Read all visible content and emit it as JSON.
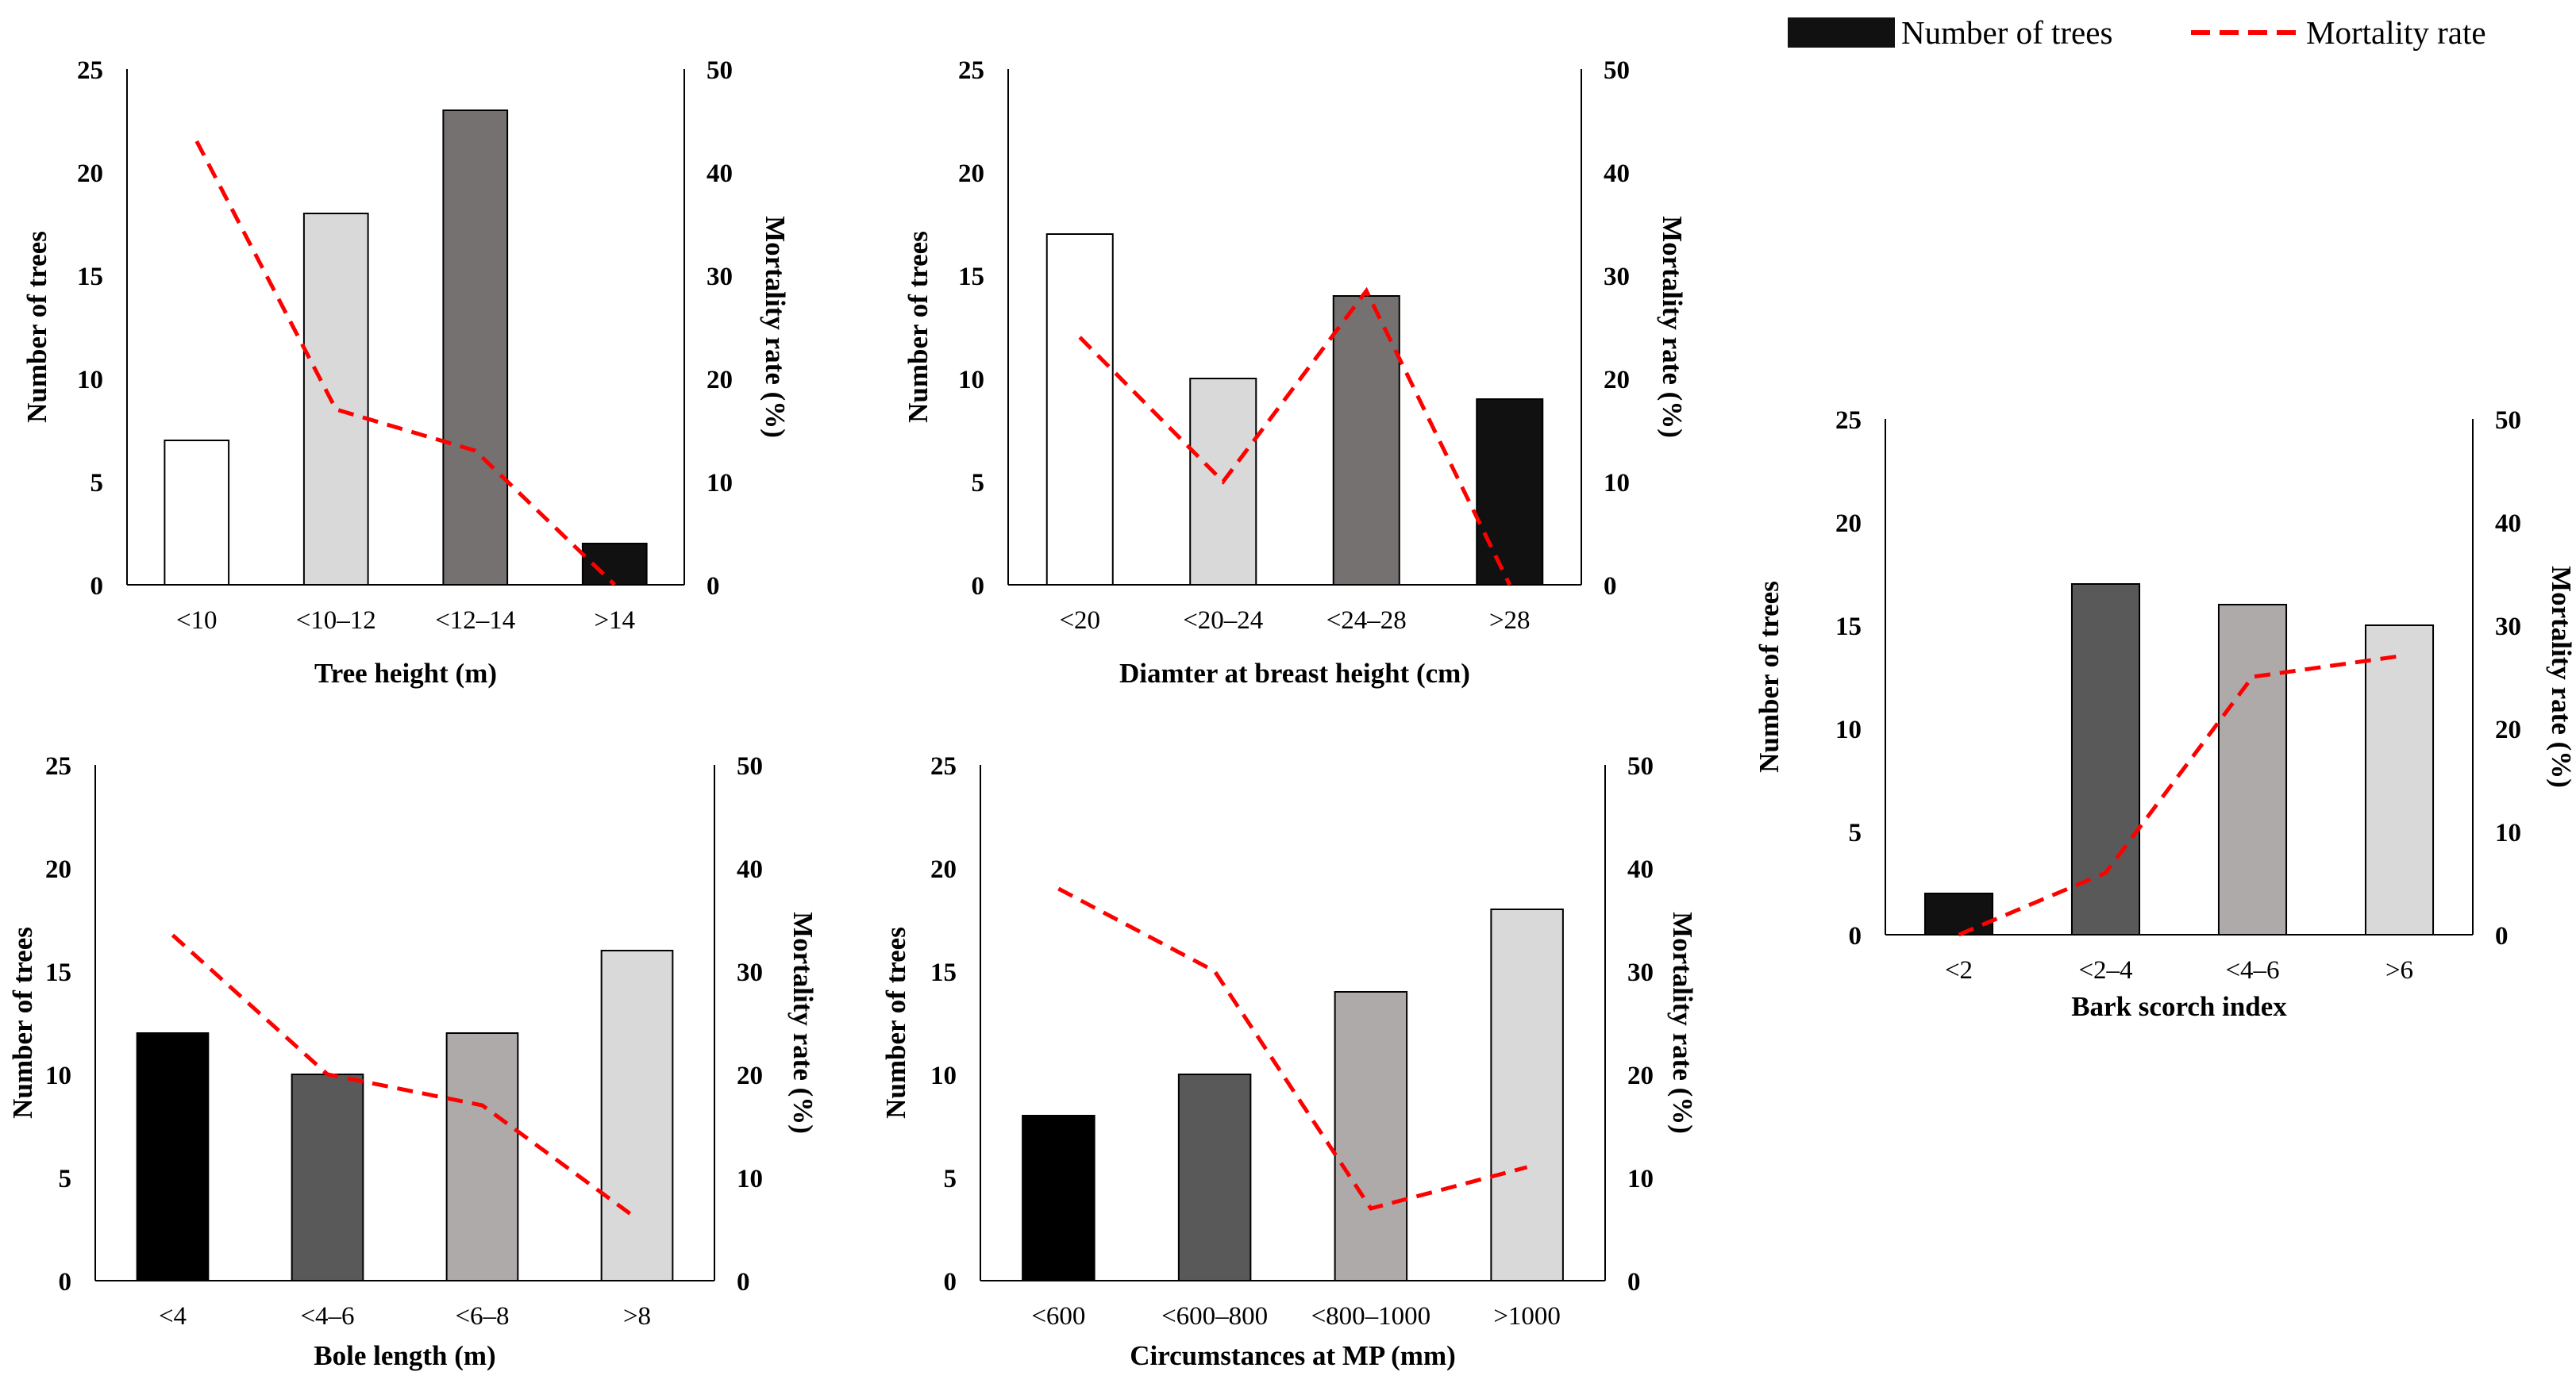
{
  "legend": {
    "bar_label": "Number of trees",
    "line_label": "Mortality rate",
    "bar_swatch_color": "#111111",
    "line_color": "#ff0000"
  },
  "chart_data": [
    {
      "type": "bar",
      "xlabel": "Tree height (m)",
      "ylabel": "Number of trees",
      "y2label": "Mortality rate (%)",
      "categories": [
        "<10",
        "<10–12",
        "<12–14",
        ">14"
      ],
      "ylim": [
        0,
        25
      ],
      "y2lim": [
        0,
        50
      ],
      "yticks": [
        "0",
        "5",
        "10",
        "15",
        "20",
        "25"
      ],
      "y2ticks": [
        "0",
        "10",
        "20",
        "30",
        "40",
        "50"
      ],
      "series": [
        {
          "name": "Number of trees",
          "kind": "bar",
          "axis": "left",
          "values": [
            7,
            18,
            23,
            2
          ]
        },
        {
          "name": "Mortality rate",
          "kind": "line",
          "axis": "right",
          "values": [
            43,
            17,
            13,
            0
          ]
        }
      ],
      "bar_colors": [
        "#ffffff",
        "#d9d9d9",
        "#767171",
        "#111111"
      ]
    },
    {
      "type": "bar",
      "xlabel": "Diamter at breast height (cm)",
      "ylabel": "Number of trees",
      "y2label": "Mortality rate (%)",
      "categories": [
        "<20",
        "<20–24",
        "<24–28",
        ">28"
      ],
      "ylim": [
        0,
        25
      ],
      "y2lim": [
        0,
        50
      ],
      "yticks": [
        "0",
        "5",
        "10",
        "15",
        "20",
        "25"
      ],
      "y2ticks": [
        "0",
        "10",
        "20",
        "30",
        "40",
        "50"
      ],
      "series": [
        {
          "name": "Number of trees",
          "kind": "bar",
          "axis": "left",
          "values": [
            17,
            10,
            14,
            9
          ]
        },
        {
          "name": "Mortality rate",
          "kind": "line",
          "axis": "right",
          "values": [
            24,
            10,
            28.5,
            0
          ]
        }
      ],
      "bar_colors": [
        "#ffffff",
        "#d9d9d9",
        "#767171",
        "#111111"
      ]
    },
    {
      "type": "bar",
      "xlabel": "Bark scorch index",
      "ylabel": "Number of trees",
      "y2label": "Mortality rate (%)",
      "categories": [
        "<2",
        "<2–4",
        "<4–6",
        ">6"
      ],
      "ylim": [
        0,
        25
      ],
      "y2lim": [
        0,
        50
      ],
      "yticks": [
        "0",
        "5",
        "10",
        "15",
        "20",
        "25"
      ],
      "y2ticks": [
        "0",
        "10",
        "20",
        "30",
        "40",
        "50"
      ],
      "series": [
        {
          "name": "Number of trees",
          "kind": "bar",
          "axis": "left",
          "values": [
            2,
            17,
            16,
            15
          ]
        },
        {
          "name": "Mortality rate",
          "kind": "line",
          "axis": "right",
          "values": [
            0,
            6,
            25,
            27
          ]
        }
      ],
      "bar_colors": [
        "#111111",
        "#595959",
        "#aeaaaa",
        "#d9d9d9"
      ]
    },
    {
      "type": "bar",
      "xlabel": "Bole length (m)",
      "ylabel": "Number of trees",
      "y2label": "Mortality rate (%)",
      "categories": [
        "<4",
        "<4–6",
        "<6–8",
        ">8"
      ],
      "ylim": [
        0,
        25
      ],
      "y2lim": [
        0,
        50
      ],
      "yticks": [
        "0",
        "5",
        "10",
        "15",
        "20",
        "25"
      ],
      "y2ticks": [
        "0",
        "10",
        "20",
        "30",
        "40",
        "50"
      ],
      "series": [
        {
          "name": "Number of trees",
          "kind": "bar",
          "axis": "left",
          "values": [
            12,
            10,
            12,
            16
          ]
        },
        {
          "name": "Mortality rate",
          "kind": "line",
          "axis": "right",
          "values": [
            33.5,
            20,
            17,
            6
          ]
        }
      ],
      "bar_colors": [
        "#000000",
        "#595959",
        "#aeaaaa",
        "#d9d9d9"
      ]
    },
    {
      "type": "bar",
      "xlabel": "Circumstances at MP (mm)",
      "ylabel": "Number of trees",
      "y2label": "Mortality rate (%)",
      "categories": [
        "<600",
        "<600–800",
        "<800–1000",
        ">1000"
      ],
      "ylim": [
        0,
        25
      ],
      "y2lim": [
        0,
        50
      ],
      "yticks": [
        "0",
        "5",
        "10",
        "15",
        "20",
        "25"
      ],
      "y2ticks": [
        "0",
        "10",
        "20",
        "30",
        "40",
        "50"
      ],
      "series": [
        {
          "name": "Number of trees",
          "kind": "bar",
          "axis": "left",
          "values": [
            8,
            10,
            14,
            18
          ]
        },
        {
          "name": "Mortality rate",
          "kind": "line",
          "axis": "right",
          "values": [
            38,
            30,
            7,
            11
          ]
        }
      ],
      "bar_colors": [
        "#000000",
        "#595959",
        "#aeaaaa",
        "#d9d9d9"
      ]
    }
  ]
}
